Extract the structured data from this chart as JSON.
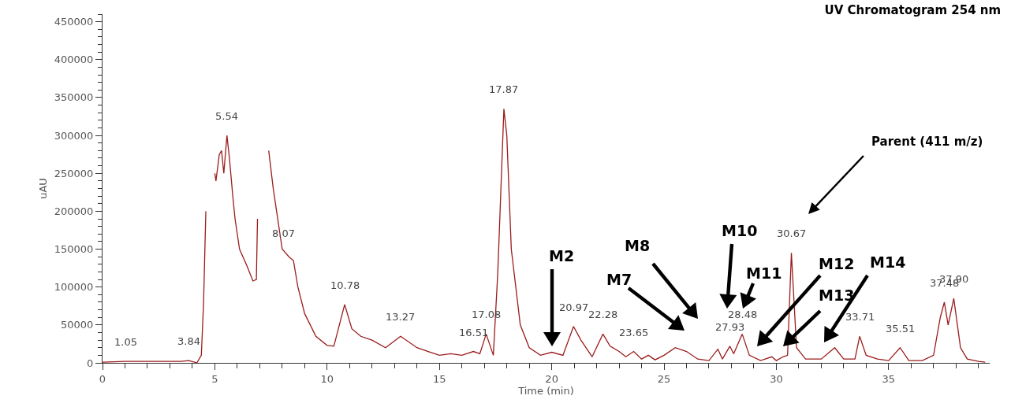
{
  "chart_data": {
    "type": "line",
    "title": "UV Chromatogram 254 nm",
    "xlabel": "Time (min)",
    "ylabel": "uAU",
    "x": [
      0,
      1,
      2,
      3,
      3.5,
      3.84,
      4.1,
      4.2,
      4.4,
      4.5,
      4.6,
      4.65,
      4.92,
      5.0,
      5.05,
      5.2,
      5.3,
      5.4,
      5.54,
      5.65,
      5.8,
      5.9,
      6.1,
      6.4,
      6.7,
      6.85,
      6.9,
      7.0,
      7.3,
      7.4,
      7.6,
      8.0,
      8.3,
      8.5,
      8.7,
      9.0,
      9.5,
      10.0,
      10.3,
      10.78,
      11.1,
      11.5,
      12.0,
      12.6,
      13.27,
      14.0,
      14.5,
      15.0,
      15.5,
      16.0,
      16.51,
      16.8,
      17.08,
      17.4,
      17.6,
      17.87,
      18.0,
      18.2,
      18.6,
      19.0,
      19.5,
      20.0,
      20.5,
      20.97,
      21.3,
      21.8,
      22.28,
      22.6,
      23.0,
      23.3,
      23.65,
      24.0,
      24.3,
      24.6,
      25.0,
      25.5,
      26.0,
      26.5,
      27.0,
      27.4,
      27.6,
      27.93,
      28.1,
      28.48,
      28.8,
      29.3,
      29.8,
      30.0,
      30.3,
      30.5,
      30.67,
      30.9,
      31.3,
      32.0,
      32.6,
      33.0,
      33.5,
      33.71,
      34.0,
      34.5,
      35.0,
      35.51,
      35.9,
      36.5,
      37.0,
      37.3,
      37.48,
      37.65,
      37.9,
      38.2,
      38.5,
      39.0,
      39.3
    ],
    "series": [
      {
        "color": "#9b1c1c",
        "values": [
          1000,
          2000,
          2000,
          2000,
          2000,
          3000,
          1000,
          0,
          10000,
          80000,
          200000,
          null,
          null,
          250000,
          240000,
          275000,
          280000,
          250000,
          300000,
          270000,
          220000,
          190000,
          150000,
          130000,
          108000,
          110000,
          190000,
          null,
          null,
          280000,
          230000,
          150000,
          140000,
          135000,
          100000,
          65000,
          35000,
          23000,
          22000,
          77000,
          45000,
          35000,
          30000,
          20000,
          35000,
          20000,
          15000,
          10000,
          12000,
          10000,
          15000,
          12000,
          38000,
          10000,
          120000,
          335000,
          300000,
          150000,
          50000,
          20000,
          10000,
          14000,
          10000,
          48000,
          30000,
          8000,
          38000,
          22000,
          15000,
          8000,
          15000,
          5000,
          10000,
          4000,
          10000,
          20000,
          15000,
          5000,
          3000,
          18000,
          5000,
          22000,
          12000,
          38000,
          10000,
          3000,
          8000,
          3000,
          8000,
          10000,
          145000,
          20000,
          5000,
          5000,
          20000,
          5000,
          5000,
          35000,
          10000,
          5000,
          3000,
          20000,
          3000,
          3000,
          10000,
          60000,
          80000,
          50000,
          85000,
          20000,
          5000,
          2000,
          1000
        ]
      }
    ],
    "xlim": [
      0,
      39.5
    ],
    "xticks": [
      0,
      5,
      10,
      15,
      20,
      25,
      30,
      35
    ],
    "ylim": [
      0,
      460000
    ],
    "yticks": [
      0,
      50000,
      100000,
      150000,
      200000,
      250000,
      300000,
      350000,
      400000,
      450000
    ],
    "grid": false,
    "marker": "none",
    "line_style": "solid",
    "annotations": [
      {
        "text": "1.05",
        "x": 1.05,
        "y": 2000
      },
      {
        "text": "3.84",
        "x": 3.84,
        "y": 3000
      },
      {
        "text": "5.54",
        "x": 5.54,
        "y": 300000
      },
      {
        "text": "8.07",
        "x": 8.07,
        "y": 145000
      },
      {
        "text": "10.78",
        "x": 10.78,
        "y": 77000
      },
      {
        "text": "13.27",
        "x": 13.27,
        "y": 35000
      },
      {
        "text": "16.51",
        "x": 16.51,
        "y": 15000
      },
      {
        "text": "17.08",
        "x": 17.08,
        "y": 38000
      },
      {
        "text": "17.87",
        "x": 17.87,
        "y": 335000
      },
      {
        "text": "20.97",
        "x": 20.97,
        "y": 48000
      },
      {
        "text": "22.28",
        "x": 22.28,
        "y": 38000
      },
      {
        "text": "23.65",
        "x": 23.65,
        "y": 15000
      },
      {
        "text": "27.93",
        "x": 27.93,
        "y": 22000
      },
      {
        "text": "28.48",
        "x": 28.48,
        "y": 38000
      },
      {
        "text": "30.67",
        "x": 30.67,
        "y": 145000
      },
      {
        "text": "33.71",
        "x": 33.71,
        "y": 35000
      },
      {
        "text": "35.51",
        "x": 35.51,
        "y": 20000
      },
      {
        "text": "37.48",
        "x": 37.48,
        "y": 80000
      },
      {
        "text": "37.90",
        "x": 37.9,
        "y": 85000
      },
      "M2",
      "M7",
      "M8",
      "M10",
      "M11",
      "M12",
      "M13",
      "M14",
      "Parent (411 m/z)"
    ]
  }
}
